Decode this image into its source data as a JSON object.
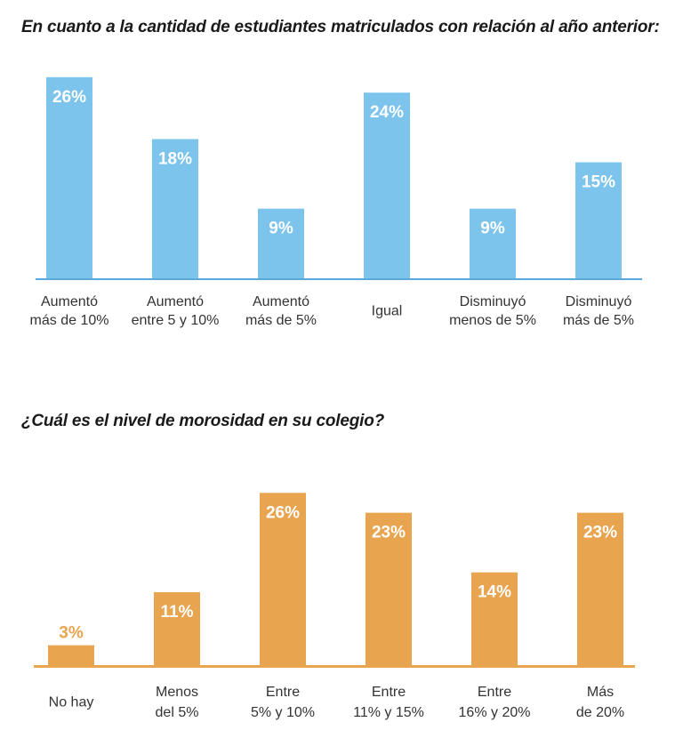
{
  "chart_data": [
    {
      "type": "bar",
      "title": "En cuanto a la cantidad de estudiantes matriculados con relación al año anterior:",
      "categories": [
        [
          "Aumentó",
          "más de 10%"
        ],
        [
          "Aumentó",
          "entre 5 y 10%"
        ],
        [
          "Aumentó",
          "más de 5%"
        ],
        [
          "Igual"
        ],
        [
          "Disminuyó",
          "menos de 5%"
        ],
        [
          "Disminuyó",
          "más de 5%"
        ]
      ],
      "values": [
        26,
        18,
        9,
        24,
        9,
        15
      ],
      "data_labels": [
        "26%",
        "18%",
        "9%",
        "24%",
        "9%",
        "15%"
      ],
      "unit": "%",
      "color": "#7dc4ec",
      "axis_color": "#5aa9dc",
      "label_color": "#ffffff",
      "grid": false
    },
    {
      "type": "bar",
      "title": "¿Cuál es el nivel de morosidad en su colegio?",
      "categories": [
        [
          "No hay"
        ],
        [
          "Menos",
          "del 5%"
        ],
        [
          "Entre",
          "5% y 10%"
        ],
        [
          "Entre",
          "11% y 15%"
        ],
        [
          "Entre",
          "16% y 20%"
        ],
        [
          "Más",
          "de 20%"
        ]
      ],
      "values": [
        3,
        11,
        26,
        23,
        14,
        23
      ],
      "data_labels": [
        "3%",
        "11%",
        "26%",
        "23%",
        "14%",
        "23%"
      ],
      "unit": "%",
      "color": "#e8a44f",
      "axis_color": "#e8a44f",
      "label_color": "#ffffff",
      "grid": false
    }
  ]
}
